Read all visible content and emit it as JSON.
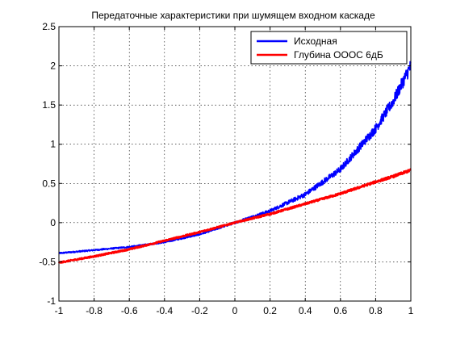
{
  "chart_data": {
    "type": "line",
    "title": "Передаточные характеристики при шумящем входном каскаде",
    "xlabel": "",
    "ylabel": "",
    "xlim": [
      -1,
      1
    ],
    "ylim": [
      -1,
      2.5
    ],
    "xticks": [
      "-1",
      "-0.8",
      "-0.6",
      "-0.4",
      "-0.2",
      "0",
      "0.2",
      "0.4",
      "0.6",
      "0.8",
      "1"
    ],
    "yticks": [
      "-1",
      "-0.5",
      "0",
      "0.5",
      "1",
      "1.5",
      "2",
      "2.5"
    ],
    "grid": true,
    "legend_position": "top-right",
    "x": [
      -1.0,
      -0.8,
      -0.6,
      -0.4,
      -0.2,
      0.0,
      0.2,
      0.4,
      0.6,
      0.8,
      0.9,
      1.0
    ],
    "series": [
      {
        "name": "Исходная",
        "color": "#0000ff",
        "values": [
          -0.39,
          -0.35,
          -0.31,
          -0.25,
          -0.15,
          0.0,
          0.15,
          0.36,
          0.68,
          1.2,
          1.55,
          2.0
        ],
        "noise_amplitude": [
          0.01,
          0.01,
          0.01,
          0.01,
          0.01,
          0.015,
          0.02,
          0.03,
          0.04,
          0.06,
          0.07,
          0.09
        ]
      },
      {
        "name": "Глубина ОООС 6дБ",
        "color": "#ff0000",
        "values": [
          -0.51,
          -0.43,
          -0.34,
          -0.23,
          -0.12,
          0.0,
          0.11,
          0.24,
          0.37,
          0.52,
          0.59,
          0.67
        ],
        "noise_amplitude": [
          0.01,
          0.01,
          0.01,
          0.01,
          0.01,
          0.01,
          0.012,
          0.012,
          0.014,
          0.015,
          0.016,
          0.018
        ]
      }
    ]
  }
}
